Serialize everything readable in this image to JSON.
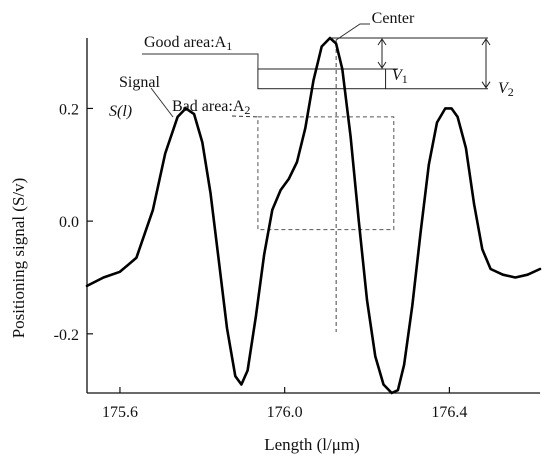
{
  "chart_data": {
    "type": "line",
    "xlabel": "Length  (l/μm)",
    "ylabel": "Positioning signal  (S/v)",
    "xlim": [
      175.52,
      176.62
    ],
    "ylim": [
      -0.305,
      0.325
    ],
    "x_ticks": [
      175.6,
      176.0,
      176.4
    ],
    "x_tick_labels": [
      "175.6",
      "176.0",
      "176.4"
    ],
    "y_ticks": [
      -0.2,
      0.0,
      0.2
    ],
    "y_tick_labels": [
      "-0.2",
      "0.0",
      "0.2"
    ],
    "grid": false,
    "series": [
      {
        "x": [
          175.52,
          175.56,
          175.6,
          175.64,
          175.68,
          175.71,
          175.74,
          175.76,
          175.78,
          175.8,
          175.82,
          175.84,
          175.86,
          175.88,
          175.895,
          175.91,
          175.93,
          175.95,
          175.97,
          175.99,
          176.01,
          176.03,
          176.05,
          176.07,
          176.09,
          176.11,
          176.125,
          176.14,
          176.16,
          176.18,
          176.2,
          176.22,
          176.24,
          176.26,
          176.275,
          176.29,
          176.31,
          176.33,
          176.35,
          176.37,
          176.39,
          176.405,
          176.42,
          176.44,
          176.46,
          176.48,
          176.5,
          176.53,
          176.56,
          176.59,
          176.62
        ],
        "y": [
          -0.115,
          -0.1,
          -0.09,
          -0.065,
          0.02,
          0.12,
          0.185,
          0.2,
          0.19,
          0.14,
          0.05,
          -0.07,
          -0.19,
          -0.275,
          -0.29,
          -0.265,
          -0.17,
          -0.06,
          0.02,
          0.055,
          0.075,
          0.105,
          0.165,
          0.25,
          0.31,
          0.325,
          0.315,
          0.27,
          0.15,
          0.0,
          -0.14,
          -0.24,
          -0.29,
          -0.305,
          -0.3,
          -0.255,
          -0.15,
          -0.02,
          0.1,
          0.175,
          0.2,
          0.2,
          0.185,
          0.13,
          0.03,
          -0.05,
          -0.085,
          -0.095,
          -0.1,
          -0.095,
          -0.085
        ]
      }
    ],
    "center_x": 176.125,
    "bad_area": {
      "x": [
        175.935,
        176.265
      ],
      "y": [
        -0.015,
        0.185
      ]
    },
    "good_area": {
      "x": [
        175.935,
        176.245
      ],
      "y": [
        0.235,
        0.27
      ]
    },
    "annotations": {
      "signal_label": "Signal",
      "signal_symbol": "S(l)",
      "good_area": "Good area:A",
      "good_area_sub": "1",
      "bad_area": "Bad area:A",
      "bad_area_sub": "2",
      "center": "Center",
      "v1": "V",
      "v1_sub": "1",
      "v2": "V",
      "v2_sub": "2"
    }
  }
}
